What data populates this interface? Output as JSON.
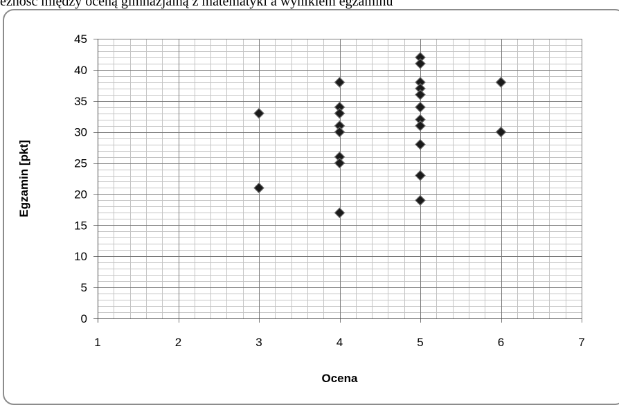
{
  "page": {
    "title": "eżność między oceną gimnazjalną z matematyki a wynikiem egzaminu"
  },
  "chart_data": {
    "type": "scatter",
    "title": "",
    "xlabel": "Ocena",
    "ylabel": "Egzamin [pkt]",
    "xlim": [
      1,
      7
    ],
    "ylim": [
      0,
      45
    ],
    "x_ticks": [
      "1",
      "2",
      "3",
      "4",
      "5",
      "6",
      "7"
    ],
    "y_ticks": [
      "0",
      "5",
      "10",
      "15",
      "20",
      "25",
      "30",
      "35",
      "40",
      "45"
    ],
    "x_minor_step": 0.2,
    "y_minor_step": 1,
    "grid": true,
    "legend": "none",
    "marker": "diamond",
    "marker_color": "#1a1a1a",
    "series": [
      {
        "points": [
          [
            3,
            33
          ],
          [
            3,
            21
          ],
          [
            4,
            38
          ],
          [
            4,
            34
          ],
          [
            4,
            33
          ],
          [
            4,
            31
          ],
          [
            4,
            30
          ],
          [
            4,
            26
          ],
          [
            4,
            25
          ],
          [
            4,
            17
          ],
          [
            5,
            42
          ],
          [
            5,
            41
          ],
          [
            5,
            38
          ],
          [
            5,
            37
          ],
          [
            5,
            36
          ],
          [
            5,
            34
          ],
          [
            5,
            32
          ],
          [
            5,
            31
          ],
          [
            5,
            28
          ],
          [
            5,
            23
          ],
          [
            5,
            19
          ],
          [
            6,
            38
          ],
          [
            6,
            30
          ]
        ]
      }
    ]
  }
}
